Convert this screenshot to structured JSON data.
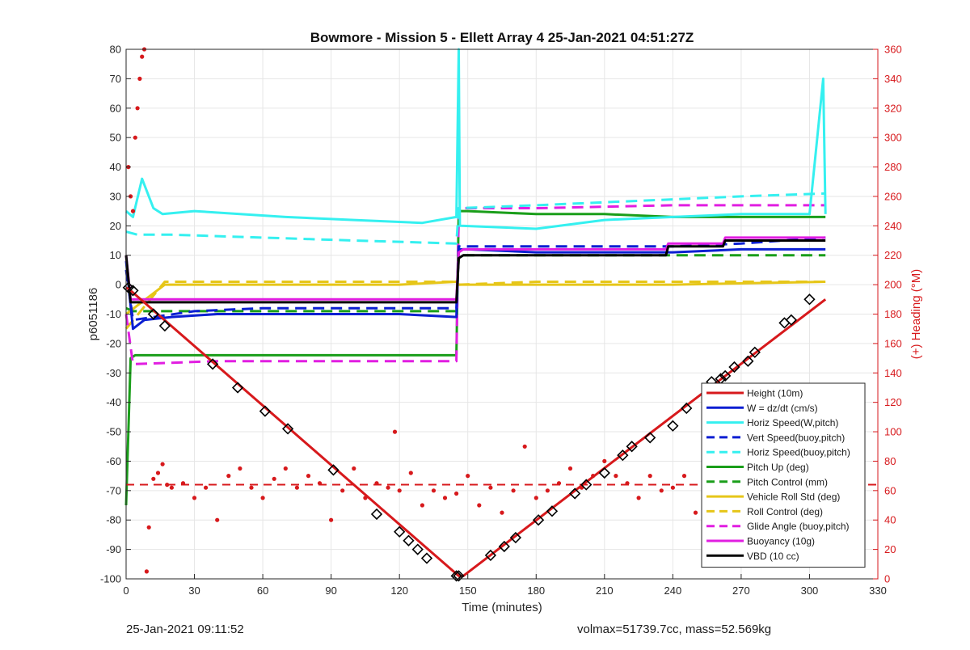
{
  "footer": {
    "left": "25-Jan-2021 09:11:52",
    "right": "volmax=51739.7cc, mass=52.569kg"
  },
  "colors": {
    "red": "#d7191c",
    "blue": "#0b1fd2",
    "cyan": "#35f0f0",
    "green": "#1a9e1a",
    "yellow": "#e6c619",
    "magenta": "#e11ee1",
    "black": "#000000"
  },
  "chart_data": {
    "type": "line",
    "title": "Bowmore - Mission 5 - Ellett Array 4 25-Jan-2021 04:51:27Z",
    "xlabel": "Time (minutes)",
    "ylabel": "p6051186",
    "y2label": "(+) Heading (°M)",
    "xlim": [
      0,
      330
    ],
    "ylim": [
      -100,
      80
    ],
    "y2lim": [
      0,
      360
    ],
    "xticks": [
      "0",
      "30",
      "60",
      "90",
      "120",
      "150",
      "180",
      "210",
      "240",
      "270",
      "300",
      "330"
    ],
    "yticks": [
      "-100",
      "-90",
      "-80",
      "-70",
      "-60",
      "-50",
      "-40",
      "-30",
      "-20",
      "-10",
      "0",
      "10",
      "20",
      "30",
      "40",
      "50",
      "60",
      "70",
      "80"
    ],
    "y2ticks": [
      "0",
      "20",
      "40",
      "60",
      "80",
      "100",
      "120",
      "140",
      "160",
      "180",
      "200",
      "220",
      "240",
      "260",
      "280",
      "300",
      "320",
      "340",
      "360"
    ],
    "grid": true,
    "legend_position": "bottom-right",
    "series": [
      {
        "name": "Height (10m)",
        "color": "#d7191c",
        "style": "solid",
        "x": [
          0,
          2,
          146,
          148,
          307
        ],
        "y": [
          -1,
          -2,
          -99,
          -99,
          -5
        ]
      },
      {
        "name": "W = dz/dt (cm/s)",
        "color": "#0b1fd2",
        "style": "solid",
        "x": [
          0,
          3,
          8,
          20,
          40,
          60,
          90,
          120,
          145,
          146,
          150,
          180,
          210,
          240,
          270,
          307
        ],
        "y": [
          8,
          -15,
          -12,
          -11,
          -10,
          -10,
          -10,
          -10,
          -11,
          12,
          12,
          11,
          11,
          11,
          12,
          12
        ]
      },
      {
        "name": "Horiz Speed(W,pitch)",
        "color": "#35f0f0",
        "style": "solid",
        "x": [
          0,
          3,
          7,
          12,
          16,
          30,
          50,
          70,
          100,
          130,
          145,
          146,
          146.5,
          147,
          180,
          210,
          240,
          270,
          300,
          306,
          307
        ],
        "y": [
          25,
          23,
          36,
          26,
          24,
          25,
          24,
          23,
          22,
          21,
          23,
          80,
          20,
          20,
          19,
          22,
          23,
          24,
          24,
          70,
          24
        ]
      },
      {
        "name": "Vert Speed(buoy,pitch)",
        "color": "#0b1fd2",
        "style": "dashed",
        "x": [
          0,
          3,
          30,
          60,
          90,
          120,
          145,
          146,
          180,
          210,
          240,
          270,
          307
        ],
        "y": [
          5,
          -12,
          -9,
          -8,
          -8,
          -8,
          -8,
          13,
          13,
          13,
          13,
          14,
          16
        ]
      },
      {
        "name": "Horiz Speed(buoy,pitch)",
        "color": "#35f0f0",
        "style": "dashed",
        "x": [
          0,
          5,
          20,
          60,
          100,
          145,
          146,
          180,
          210,
          240,
          270,
          307
        ],
        "y": [
          18,
          17,
          17,
          16,
          15,
          14,
          26,
          27,
          28,
          29,
          30,
          31
        ]
      },
      {
        "name": "Pitch Up (deg)",
        "color": "#1a9e1a",
        "style": "solid",
        "x": [
          0,
          2,
          4,
          20,
          60,
          100,
          145,
          146,
          150,
          180,
          210,
          240,
          270,
          307
        ],
        "y": [
          -75,
          -25,
          -24,
          -24,
          -24,
          -24,
          -24,
          25,
          25,
          24,
          24,
          23,
          23,
          23
        ]
      },
      {
        "name": "Pitch Control (mm)",
        "color": "#1a9e1a",
        "style": "dashed",
        "x": [
          0,
          3,
          145,
          146,
          307
        ],
        "y": [
          -8,
          -9,
          -9,
          10,
          10
        ]
      },
      {
        "name": "Vehicle Roll Std (deg)",
        "color": "#e6c619",
        "style": "solid",
        "x": [
          0,
          17,
          60,
          120,
          145,
          146,
          180,
          240,
          307
        ],
        "y": [
          -10,
          0,
          0,
          0,
          1,
          0,
          0,
          0,
          1
        ]
      },
      {
        "name": "Roll Control (deg)",
        "color": "#e6c619",
        "style": "dashed",
        "x": [
          0,
          17,
          60,
          120,
          145,
          146,
          180,
          240,
          307
        ],
        "y": [
          -15,
          1,
          1,
          1,
          1,
          0,
          1,
          1,
          1
        ]
      },
      {
        "name": "Glide Angle (buoy,pitch)",
        "color": "#e11ee1",
        "style": "dashed",
        "x": [
          0,
          3,
          40,
          100,
          145,
          146,
          180,
          240,
          307
        ],
        "y": [
          -10,
          -27,
          -26,
          -26,
          -26,
          26,
          26,
          27,
          27
        ]
      },
      {
        "name": "Buoyancy (10g)",
        "color": "#e11ee1",
        "style": "solid",
        "x": [
          0,
          2,
          145,
          146,
          148,
          237,
          238,
          262,
          263,
          307
        ],
        "y": [
          10,
          -5,
          -5,
          11,
          12,
          12,
          14,
          14,
          16,
          16
        ]
      },
      {
        "name": "VBD (10 cc)",
        "color": "#000000",
        "style": "solid",
        "x": [
          0,
          2,
          145,
          146,
          148,
          237,
          238,
          262,
          263,
          307
        ],
        "y": [
          10,
          -6,
          -6,
          9,
          10,
          10,
          13,
          13,
          15,
          15
        ]
      }
    ],
    "markers": {
      "description": "Black diamond markers along Height (10m)",
      "x": [
        1,
        3,
        12,
        17,
        38,
        49,
        61,
        71,
        91,
        110,
        120,
        124,
        128,
        132,
        145,
        146,
        160,
        166,
        171,
        181,
        187,
        197,
        202,
        210,
        218,
        222,
        230,
        240,
        246,
        257,
        261,
        263,
        267,
        273,
        276,
        289,
        292,
        300
      ],
      "y": [
        -1,
        -2,
        -10,
        -14,
        -27,
        -35,
        -43,
        -49,
        -63,
        -78,
        -84,
        -87,
        -90,
        -93,
        -99,
        -99,
        -92,
        -89,
        -86,
        -80,
        -77,
        -71,
        -68,
        -64,
        -58,
        -55,
        -52,
        -48,
        -42,
        -33,
        -32,
        -31,
        -28,
        -26,
        -23,
        -13,
        -12,
        -5
      ]
    },
    "heading_series": {
      "name": "Heading (°M)",
      "color": "#d7191c",
      "style": "dotted",
      "axis": "right",
      "reference_line": 64,
      "x": [
        1,
        2,
        3,
        4,
        5,
        6,
        7,
        8,
        9,
        10,
        12,
        14,
        16,
        18,
        20,
        25,
        30,
        35,
        40,
        45,
        50,
        55,
        60,
        65,
        70,
        75,
        80,
        85,
        90,
        95,
        100,
        105,
        110,
        115,
        118,
        120,
        125,
        130,
        135,
        140,
        145,
        150,
        155,
        160,
        165,
        170,
        175,
        180,
        185,
        190,
        195,
        200,
        205,
        210,
        215,
        220,
        225,
        230,
        235,
        240,
        245,
        250,
        255,
        260,
        265,
        270,
        275,
        280,
        285,
        290,
        295,
        300,
        305
      ],
      "y": [
        280,
        260,
        250,
        300,
        320,
        340,
        355,
        360,
        5,
        35,
        68,
        72,
        78,
        64,
        62,
        65,
        55,
        62,
        40,
        70,
        75,
        62,
        55,
        68,
        75,
        62,
        70,
        65,
        40,
        60,
        75,
        55,
        65,
        62,
        100,
        60,
        72,
        50,
        60,
        55,
        58,
        70,
        50,
        62,
        45,
        60,
        90,
        55,
        60,
        65,
        75,
        62,
        70,
        80,
        70,
        65,
        55,
        70,
        60,
        62,
        70,
        45,
        60,
        65,
        70,
        55,
        45,
        60,
        65,
        70,
        50,
        62,
        60
      ]
    }
  }
}
